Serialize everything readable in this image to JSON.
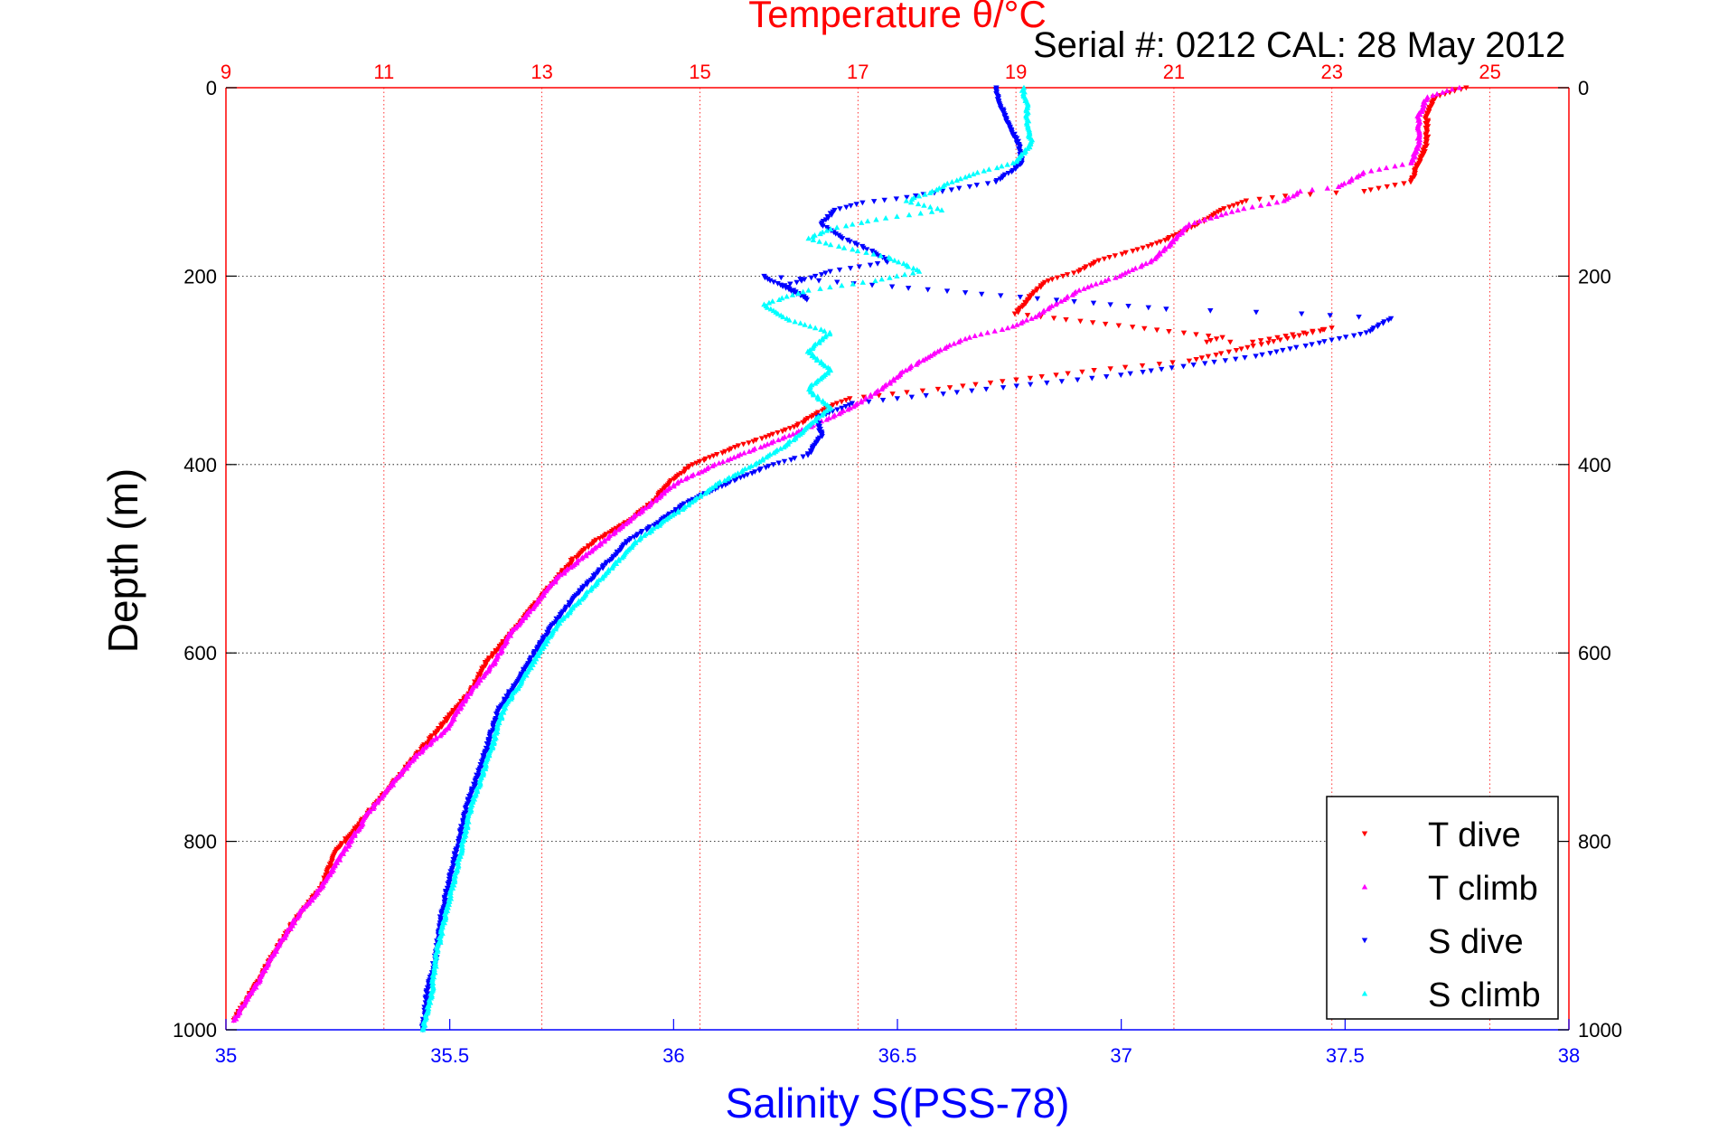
{
  "chart_data": {
    "type": "scatter",
    "title": "Temperature θ/°C",
    "subtitle": "Serial #: 0212  CAL: 28 May 2012",
    "xlabel": "Salinity S(PSS-78)",
    "ylabel": "Depth (m)",
    "colors": {
      "temperature_axis": "#ff0000",
      "salinity_axis": "#0000ff",
      "t_dive": "#ff0000",
      "t_climb": "#ff00ff",
      "s_dive": "#0000ff",
      "s_climb": "#00ffff"
    },
    "x_bottom": {
      "label": "Salinity S(PSS-78)",
      "range": [
        35,
        38
      ],
      "ticks": [
        "35",
        "35.5",
        "36",
        "36.5",
        "37",
        "37.5",
        "38"
      ]
    },
    "x_top": {
      "label": "Temperature θ/°C",
      "range": [
        9,
        26
      ],
      "ticks": [
        "9",
        "11",
        "13",
        "15",
        "17",
        "19",
        "21",
        "23",
        "25"
      ]
    },
    "y": {
      "label": "Depth (m)",
      "range": [
        0,
        1000
      ],
      "reversed": true,
      "ticks": [
        "0",
        "200",
        "400",
        "600",
        "800",
        "1000"
      ]
    },
    "grid": true,
    "legend_position": "bottom-right",
    "series": [
      {
        "name": "T dive",
        "axis": "temperature",
        "marker": "triangle-down",
        "points": [
          [
            24.7,
            0
          ],
          [
            24.3,
            10
          ],
          [
            24.2,
            30
          ],
          [
            24.2,
            60
          ],
          [
            24.1,
            80
          ],
          [
            24.0,
            100
          ],
          [
            23.4,
            110
          ],
          [
            22.4,
            115
          ],
          [
            21.9,
            120
          ],
          [
            21.6,
            130
          ],
          [
            21.3,
            145
          ],
          [
            20.8,
            165
          ],
          [
            20.4,
            175
          ],
          [
            20.0,
            185
          ],
          [
            19.8,
            195
          ],
          [
            19.4,
            205
          ],
          [
            19.2,
            220
          ],
          [
            19.0,
            240
          ],
          [
            21.6,
            265
          ],
          [
            21.4,
            270
          ],
          [
            22.0,
            270
          ],
          [
            22.5,
            262
          ],
          [
            23.0,
            255
          ],
          [
            21.2,
            290
          ],
          [
            20.0,
            300
          ],
          [
            19.0,
            310
          ],
          [
            18.0,
            320
          ],
          [
            16.9,
            330
          ],
          [
            16.6,
            340
          ],
          [
            16.2,
            360
          ],
          [
            15.5,
            380
          ],
          [
            14.9,
            400
          ],
          [
            14.6,
            420
          ],
          [
            14.4,
            440
          ],
          [
            14.1,
            460
          ],
          [
            13.7,
            480
          ],
          [
            13.4,
            500
          ],
          [
            13.2,
            520
          ],
          [
            12.9,
            550
          ],
          [
            12.6,
            580
          ],
          [
            12.3,
            610
          ],
          [
            12.1,
            640
          ],
          [
            11.7,
            680
          ],
          [
            11.4,
            710
          ],
          [
            11.1,
            740
          ],
          [
            10.8,
            770
          ],
          [
            10.4,
            810
          ],
          [
            10.2,
            850
          ],
          [
            9.9,
            880
          ],
          [
            9.6,
            920
          ],
          [
            9.4,
            950
          ],
          [
            9.1,
            990
          ]
        ]
      },
      {
        "name": "T climb",
        "axis": "temperature",
        "marker": "triangle-up",
        "points": [
          [
            24.6,
            0
          ],
          [
            24.2,
            10
          ],
          [
            24.1,
            30
          ],
          [
            24.1,
            60
          ],
          [
            24.0,
            80
          ],
          [
            23.4,
            90
          ],
          [
            23.1,
            105
          ],
          [
            22.6,
            110
          ],
          [
            22.4,
            120
          ],
          [
            21.8,
            130
          ],
          [
            21.2,
            145
          ],
          [
            20.9,
            170
          ],
          [
            20.7,
            185
          ],
          [
            20.3,
            200
          ],
          [
            19.8,
            215
          ],
          [
            19.5,
            230
          ],
          [
            19.2,
            245
          ],
          [
            18.9,
            255
          ],
          [
            18.4,
            265
          ],
          [
            18.0,
            280
          ],
          [
            17.6,
            300
          ],
          [
            17.3,
            320
          ],
          [
            16.9,
            340
          ],
          [
            16.4,
            360
          ],
          [
            15.8,
            380
          ],
          [
            15.2,
            400
          ],
          [
            14.7,
            420
          ],
          [
            14.4,
            440
          ],
          [
            14.1,
            460
          ],
          [
            13.8,
            480
          ],
          [
            13.5,
            500
          ],
          [
            13.2,
            520
          ],
          [
            12.9,
            550
          ],
          [
            12.6,
            580
          ],
          [
            12.4,
            610
          ],
          [
            12.1,
            640
          ],
          [
            11.8,
            680
          ],
          [
            11.4,
            710
          ],
          [
            11.1,
            740
          ],
          [
            10.8,
            770
          ],
          [
            10.5,
            810
          ],
          [
            10.2,
            850
          ],
          [
            9.9,
            880
          ],
          [
            9.6,
            920
          ],
          [
            9.4,
            950
          ],
          [
            9.1,
            990
          ]
        ]
      },
      {
        "name": "S dive",
        "axis": "salinity",
        "marker": "triangle-down",
        "points": [
          [
            36.72,
            0
          ],
          [
            36.73,
            20
          ],
          [
            36.75,
            40
          ],
          [
            36.77,
            60
          ],
          [
            36.78,
            80
          ],
          [
            36.72,
            100
          ],
          [
            36.6,
            110
          ],
          [
            36.5,
            118
          ],
          [
            36.42,
            122
          ],
          [
            36.36,
            130
          ],
          [
            36.33,
            145
          ],
          [
            36.38,
            160
          ],
          [
            36.45,
            175
          ],
          [
            36.48,
            185
          ],
          [
            36.35,
            195
          ],
          [
            36.25,
            210
          ],
          [
            36.3,
            225
          ],
          [
            36.2,
            200
          ],
          [
            37.1,
            235
          ],
          [
            37.4,
            240
          ],
          [
            37.6,
            245
          ],
          [
            37.55,
            260
          ],
          [
            37.3,
            285
          ],
          [
            37.0,
            305
          ],
          [
            36.8,
            315
          ],
          [
            36.6,
            325
          ],
          [
            36.4,
            335
          ],
          [
            36.32,
            350
          ],
          [
            36.33,
            370
          ],
          [
            36.3,
            390
          ],
          [
            36.22,
            400
          ],
          [
            36.12,
            420
          ],
          [
            36.03,
            440
          ],
          [
            35.97,
            460
          ],
          [
            35.9,
            480
          ],
          [
            35.84,
            510
          ],
          [
            35.78,
            540
          ],
          [
            35.73,
            570
          ],
          [
            35.69,
            600
          ],
          [
            35.65,
            630
          ],
          [
            35.61,
            660
          ],
          [
            35.59,
            690
          ],
          [
            35.57,
            720
          ],
          [
            35.54,
            760
          ],
          [
            35.52,
            800
          ],
          [
            35.5,
            840
          ],
          [
            35.48,
            880
          ],
          [
            35.47,
            920
          ],
          [
            35.45,
            960
          ],
          [
            35.44,
            1000
          ]
        ]
      },
      {
        "name": "S climb",
        "axis": "salinity",
        "marker": "triangle-up",
        "points": [
          [
            36.78,
            0
          ],
          [
            36.79,
            20
          ],
          [
            36.79,
            40
          ],
          [
            36.8,
            60
          ],
          [
            36.76,
            80
          ],
          [
            36.68,
            90
          ],
          [
            36.62,
            100
          ],
          [
            36.58,
            110
          ],
          [
            36.52,
            120
          ],
          [
            36.6,
            130
          ],
          [
            36.45,
            140
          ],
          [
            36.35,
            150
          ],
          [
            36.3,
            160
          ],
          [
            36.38,
            170
          ],
          [
            36.48,
            180
          ],
          [
            36.55,
            195
          ],
          [
            36.45,
            205
          ],
          [
            36.3,
            215
          ],
          [
            36.2,
            230
          ],
          [
            36.25,
            245
          ],
          [
            36.35,
            260
          ],
          [
            36.3,
            280
          ],
          [
            36.35,
            300
          ],
          [
            36.3,
            320
          ],
          [
            36.35,
            340
          ],
          [
            36.3,
            360
          ],
          [
            36.25,
            380
          ],
          [
            36.18,
            400
          ],
          [
            36.1,
            420
          ],
          [
            36.04,
            440
          ],
          [
            35.98,
            460
          ],
          [
            35.92,
            480
          ],
          [
            35.86,
            510
          ],
          [
            35.8,
            540
          ],
          [
            35.74,
            570
          ],
          [
            35.7,
            600
          ],
          [
            35.66,
            630
          ],
          [
            35.62,
            660
          ],
          [
            35.6,
            690
          ],
          [
            35.58,
            720
          ],
          [
            35.55,
            760
          ],
          [
            35.53,
            800
          ],
          [
            35.51,
            840
          ],
          [
            35.49,
            880
          ],
          [
            35.47,
            920
          ],
          [
            35.46,
            960
          ],
          [
            35.44,
            1000
          ]
        ]
      }
    ]
  }
}
